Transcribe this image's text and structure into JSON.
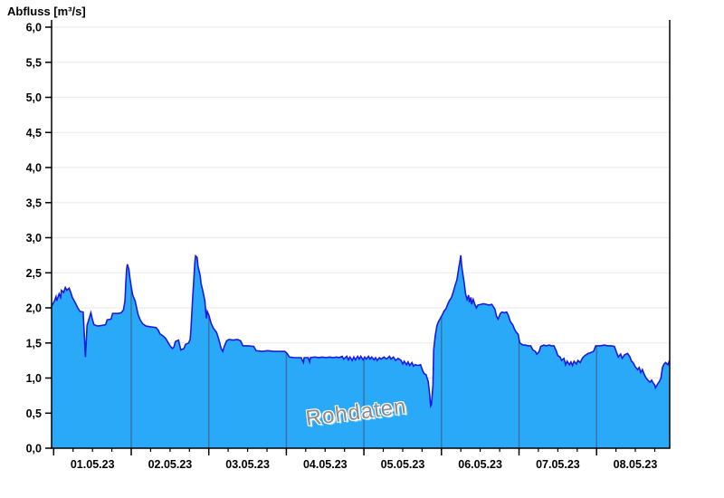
{
  "title": "Abfluss [m³/s]",
  "watermark": "Rohdaten",
  "colors": {
    "area_fill": "#29a9f8",
    "line": "#1b1be0",
    "day_divider": "#3a719f",
    "gridline": "#ececec",
    "axis": "#000000",
    "text": "#000000",
    "watermark_text": "#8c8c8c"
  },
  "chart_data": {
    "type": "area",
    "title": "Abfluss [m³/s]",
    "ylabel": "Abfluss [m³/s]",
    "xlabel": "",
    "ylim": [
      0.0,
      6.0
    ],
    "y_tick_step": 0.5,
    "y_tick_labels": [
      "0,0",
      "0,5",
      "1,0",
      "1,5",
      "2,0",
      "2,5",
      "3,0",
      "3,5",
      "4,0",
      "4,5",
      "5,0",
      "5,5",
      "6,0"
    ],
    "x_tick_labels": [
      "01.05.23",
      "02.05.23",
      "03.05.23",
      "04.05.23",
      "05.05.23",
      "06.05.23",
      "07.05.23",
      "08.05.23"
    ],
    "x_range_days": [
      -0.03,
      7.95
    ],
    "x_major_tick_interval_days": 1,
    "x_minor_tick_interval_days": 0.25,
    "grid": "horizontal major gridlines; vertical day dividers drawn only inside filled area",
    "legend": "none",
    "watermark": "Rohdaten",
    "series": [
      {
        "name": "Abfluss Rohdaten",
        "unit": "m³/s",
        "points": [
          [
            -0.03,
            2.02
          ],
          [
            0.01,
            2.1
          ],
          [
            0.03,
            2.16
          ],
          [
            0.04,
            2.1
          ],
          [
            0.07,
            2.2
          ],
          [
            0.09,
            2.15
          ],
          [
            0.1,
            2.25
          ],
          [
            0.13,
            2.22
          ],
          [
            0.15,
            2.29
          ],
          [
            0.17,
            2.25
          ],
          [
            0.2,
            2.28
          ],
          [
            0.22,
            2.22
          ],
          [
            0.24,
            2.15
          ],
          [
            0.28,
            2.07
          ],
          [
            0.31,
            2.0
          ],
          [
            0.34,
            1.95
          ],
          [
            0.38,
            1.94
          ],
          [
            0.41,
            1.3
          ],
          [
            0.43,
            1.75
          ],
          [
            0.48,
            1.93
          ],
          [
            0.5,
            1.83
          ],
          [
            0.52,
            1.76
          ],
          [
            0.57,
            1.74
          ],
          [
            0.62,
            1.75
          ],
          [
            0.67,
            1.76
          ],
          [
            0.69,
            1.83
          ],
          [
            0.74,
            1.84
          ],
          [
            0.76,
            1.92
          ],
          [
            0.83,
            1.92
          ],
          [
            0.87,
            1.93
          ],
          [
            0.9,
            1.97
          ],
          [
            0.92,
            2.1
          ],
          [
            0.93,
            2.35
          ],
          [
            0.94,
            2.55
          ],
          [
            0.95,
            2.62
          ],
          [
            0.97,
            2.55
          ],
          [
            0.98,
            2.45
          ],
          [
            1.0,
            2.3
          ],
          [
            1.02,
            2.18
          ],
          [
            1.05,
            2.1
          ],
          [
            1.07,
            2.0
          ],
          [
            1.09,
            1.9
          ],
          [
            1.12,
            1.82
          ],
          [
            1.15,
            1.77
          ],
          [
            1.19,
            1.74
          ],
          [
            1.25,
            1.73
          ],
          [
            1.32,
            1.72
          ],
          [
            1.35,
            1.68
          ],
          [
            1.37,
            1.63
          ],
          [
            1.41,
            1.6
          ],
          [
            1.44,
            1.57
          ],
          [
            1.48,
            1.5
          ],
          [
            1.5,
            1.46
          ],
          [
            1.53,
            1.42
          ],
          [
            1.55,
            1.44
          ],
          [
            1.57,
            1.52
          ],
          [
            1.61,
            1.54
          ],
          [
            1.64,
            1.4
          ],
          [
            1.68,
            1.42
          ],
          [
            1.7,
            1.48
          ],
          [
            1.74,
            1.5
          ],
          [
            1.76,
            1.55
          ],
          [
            1.77,
            1.7
          ],
          [
            1.79,
            2.1
          ],
          [
            1.81,
            2.45
          ],
          [
            1.82,
            2.65
          ],
          [
            1.83,
            2.74
          ],
          [
            1.85,
            2.72
          ],
          [
            1.86,
            2.6
          ],
          [
            1.89,
            2.45
          ],
          [
            1.9,
            2.35
          ],
          [
            1.92,
            2.26
          ],
          [
            1.95,
            2.1
          ],
          [
            1.96,
            1.95
          ],
          [
            1.97,
            1.85
          ],
          [
            1.98,
            1.95
          ],
          [
            2.0,
            1.9
          ],
          [
            2.03,
            1.78
          ],
          [
            2.06,
            1.71
          ],
          [
            2.1,
            1.65
          ],
          [
            2.13,
            1.55
          ],
          [
            2.16,
            1.42
          ],
          [
            2.18,
            1.38
          ],
          [
            2.2,
            1.45
          ],
          [
            2.23,
            1.53
          ],
          [
            2.26,
            1.55
          ],
          [
            2.31,
            1.54
          ],
          [
            2.37,
            1.55
          ],
          [
            2.41,
            1.53
          ],
          [
            2.44,
            1.46
          ],
          [
            2.51,
            1.46
          ],
          [
            2.58,
            1.45
          ],
          [
            2.61,
            1.39
          ],
          [
            2.69,
            1.38
          ],
          [
            2.76,
            1.39
          ],
          [
            2.84,
            1.38
          ],
          [
            2.93,
            1.38
          ],
          [
            2.98,
            1.38
          ],
          [
            3.01,
            1.35
          ],
          [
            3.04,
            1.3
          ],
          [
            3.1,
            1.29
          ],
          [
            3.16,
            1.29
          ],
          [
            3.19,
            1.29
          ],
          [
            3.22,
            1.22
          ],
          [
            3.23,
            1.29
          ],
          [
            3.28,
            1.29
          ],
          [
            3.3,
            1.23
          ],
          [
            3.31,
            1.29
          ],
          [
            3.37,
            1.3
          ],
          [
            3.42,
            1.29
          ],
          [
            3.46,
            1.3
          ],
          [
            3.51,
            1.29
          ],
          [
            3.56,
            1.3
          ],
          [
            3.6,
            1.29
          ],
          [
            3.65,
            1.3
          ],
          [
            3.68,
            1.29
          ],
          [
            3.72,
            1.31
          ],
          [
            3.74,
            1.27
          ],
          [
            3.78,
            1.31
          ],
          [
            3.8,
            1.26
          ],
          [
            3.82,
            1.3
          ],
          [
            3.85,
            1.25
          ],
          [
            3.87,
            1.3
          ],
          [
            3.89,
            1.26
          ],
          [
            3.92,
            1.31
          ],
          [
            3.94,
            1.27
          ],
          [
            3.96,
            1.31
          ],
          [
            3.99,
            1.26
          ],
          [
            4.01,
            1.3
          ],
          [
            4.03,
            1.27
          ],
          [
            4.06,
            1.31
          ],
          [
            4.08,
            1.27
          ],
          [
            4.1,
            1.3
          ],
          [
            4.13,
            1.26
          ],
          [
            4.15,
            1.29
          ],
          [
            4.17,
            1.25
          ],
          [
            4.2,
            1.29
          ],
          [
            4.22,
            1.27
          ],
          [
            4.26,
            1.3
          ],
          [
            4.29,
            1.27
          ],
          [
            4.33,
            1.31
          ],
          [
            4.35,
            1.27
          ],
          [
            4.38,
            1.3
          ],
          [
            4.41,
            1.25
          ],
          [
            4.44,
            1.28
          ],
          [
            4.48,
            1.25
          ],
          [
            4.5,
            1.2
          ],
          [
            4.52,
            1.24
          ],
          [
            4.55,
            1.19
          ],
          [
            4.57,
            1.23
          ],
          [
            4.59,
            1.18
          ],
          [
            4.62,
            1.22
          ],
          [
            4.64,
            1.17
          ],
          [
            4.66,
            1.19
          ],
          [
            4.7,
            1.18
          ],
          [
            4.73,
            1.19
          ],
          [
            4.76,
            1.1
          ],
          [
            4.78,
            1.06
          ],
          [
            4.8,
            1.05
          ],
          [
            4.83,
            0.95
          ],
          [
            4.85,
            0.75
          ],
          [
            4.86,
            0.6
          ],
          [
            4.87,
            0.62
          ],
          [
            4.89,
            0.9
          ],
          [
            4.9,
            1.4
          ],
          [
            4.92,
            1.6
          ],
          [
            4.94,
            1.74
          ],
          [
            4.96,
            1.8
          ],
          [
            4.99,
            1.86
          ],
          [
            5.01,
            1.9
          ],
          [
            5.03,
            1.95
          ],
          [
            5.06,
            1.99
          ],
          [
            5.08,
            2.05
          ],
          [
            5.1,
            2.1
          ],
          [
            5.13,
            2.15
          ],
          [
            5.15,
            2.22
          ],
          [
            5.17,
            2.3
          ],
          [
            5.2,
            2.4
          ],
          [
            5.22,
            2.55
          ],
          [
            5.24,
            2.68
          ],
          [
            5.25,
            2.75
          ],
          [
            5.26,
            2.6
          ],
          [
            5.28,
            2.45
          ],
          [
            5.29,
            2.38
          ],
          [
            5.3,
            2.3
          ],
          [
            5.31,
            2.2
          ],
          [
            5.33,
            2.12
          ],
          [
            5.35,
            2.18
          ],
          [
            5.36,
            2.08
          ],
          [
            5.38,
            2.15
          ],
          [
            5.39,
            2.05
          ],
          [
            5.41,
            2.12
          ],
          [
            5.43,
            2.05
          ],
          [
            5.45,
            2.0
          ],
          [
            5.47,
            2.04
          ],
          [
            5.51,
            2.05
          ],
          [
            5.54,
            2.06
          ],
          [
            5.58,
            2.05
          ],
          [
            5.61,
            2.04
          ],
          [
            5.65,
            2.05
          ],
          [
            5.69,
            1.98
          ],
          [
            5.71,
            1.88
          ],
          [
            5.73,
            1.84
          ],
          [
            5.76,
            1.92
          ],
          [
            5.78,
            1.94
          ],
          [
            5.81,
            1.93
          ],
          [
            5.84,
            1.94
          ],
          [
            5.86,
            1.9
          ],
          [
            5.89,
            1.8
          ],
          [
            5.92,
            1.76
          ],
          [
            5.94,
            1.7
          ],
          [
            5.96,
            1.66
          ],
          [
            5.99,
            1.62
          ],
          [
            6.01,
            1.5
          ],
          [
            6.05,
            1.47
          ],
          [
            6.08,
            1.47
          ],
          [
            6.12,
            1.46
          ],
          [
            6.15,
            1.46
          ],
          [
            6.18,
            1.4
          ],
          [
            6.21,
            1.38
          ],
          [
            6.23,
            1.34
          ],
          [
            6.26,
            1.38
          ],
          [
            6.28,
            1.45
          ],
          [
            6.32,
            1.47
          ],
          [
            6.35,
            1.46
          ],
          [
            6.39,
            1.47
          ],
          [
            6.42,
            1.46
          ],
          [
            6.45,
            1.46
          ],
          [
            6.48,
            1.39
          ],
          [
            6.5,
            1.32
          ],
          [
            6.53,
            1.3
          ],
          [
            6.55,
            1.25
          ],
          [
            6.58,
            1.28
          ],
          [
            6.6,
            1.19
          ],
          [
            6.62,
            1.24
          ],
          [
            6.65,
            1.19
          ],
          [
            6.67,
            1.23
          ],
          [
            6.69,
            1.18
          ],
          [
            6.71,
            1.24
          ],
          [
            6.74,
            1.2
          ],
          [
            6.76,
            1.25
          ],
          [
            6.79,
            1.22
          ],
          [
            6.81,
            1.27
          ],
          [
            6.83,
            1.3
          ],
          [
            6.85,
            1.32
          ],
          [
            6.89,
            1.35
          ],
          [
            6.92,
            1.36
          ],
          [
            6.96,
            1.38
          ],
          [
            6.99,
            1.46
          ],
          [
            7.05,
            1.46
          ],
          [
            7.1,
            1.47
          ],
          [
            7.14,
            1.46
          ],
          [
            7.19,
            1.46
          ],
          [
            7.23,
            1.45
          ],
          [
            7.26,
            1.36
          ],
          [
            7.28,
            1.3
          ],
          [
            7.31,
            1.34
          ],
          [
            7.33,
            1.28
          ],
          [
            7.36,
            1.33
          ],
          [
            7.38,
            1.34
          ],
          [
            7.4,
            1.35
          ],
          [
            7.43,
            1.3
          ],
          [
            7.45,
            1.24
          ],
          [
            7.47,
            1.22
          ],
          [
            7.5,
            1.16
          ],
          [
            7.53,
            1.12
          ],
          [
            7.55,
            1.15
          ],
          [
            7.57,
            1.08
          ],
          [
            7.59,
            1.12
          ],
          [
            7.62,
            1.04
          ],
          [
            7.64,
            1.0
          ],
          [
            7.66,
            0.97
          ],
          [
            7.69,
            0.94
          ],
          [
            7.71,
            0.97
          ],
          [
            7.73,
            0.93
          ],
          [
            7.75,
            0.9
          ],
          [
            7.76,
            0.86
          ],
          [
            7.79,
            0.92
          ],
          [
            7.81,
            0.95
          ],
          [
            7.83,
            1.0
          ],
          [
            7.85,
            1.15
          ],
          [
            7.87,
            1.2
          ],
          [
            7.89,
            1.22
          ],
          [
            7.92,
            1.19
          ],
          [
            7.94,
            1.25
          ]
        ]
      }
    ]
  }
}
